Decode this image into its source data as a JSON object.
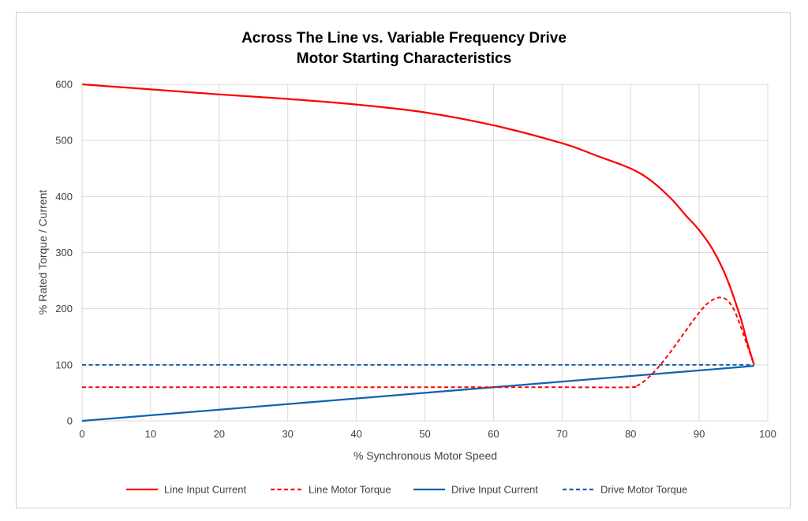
{
  "chart_data": {
    "type": "line",
    "title": [
      "Across The Line vs. Variable Frequency Drive",
      "Motor Starting Characteristics"
    ],
    "xlabel": "% Synchronous Motor Speed",
    "ylabel": "% Rated Torque / Current",
    "xlim": [
      0,
      100
    ],
    "ylim": [
      0,
      600
    ],
    "xticks": [
      0,
      10,
      20,
      30,
      40,
      50,
      60,
      70,
      80,
      90,
      100
    ],
    "yticks": [
      0,
      100,
      200,
      300,
      400,
      500,
      600
    ],
    "grid": true,
    "legend_position": "bottom",
    "series": [
      {
        "name": "Line Input Current",
        "color": "#ff0000",
        "dash": "solid",
        "x": [
          0,
          10,
          20,
          30,
          40,
          50,
          60,
          70,
          75,
          80,
          83,
          86,
          88,
          90,
          92,
          94,
          96,
          97,
          98
        ],
        "y": [
          600,
          591,
          582,
          574,
          564,
          550,
          527,
          495,
          473,
          450,
          428,
          395,
          367,
          340,
          305,
          255,
          185,
          140,
          100
        ]
      },
      {
        "name": "Line Motor Torque",
        "color": "#ff0000",
        "dash": "dashed",
        "x": [
          0,
          10,
          20,
          30,
          40,
          50,
          60,
          70,
          80,
          81,
          82,
          83,
          84,
          85,
          86,
          87,
          88,
          89,
          90,
          91,
          92,
          93,
          94,
          95,
          96,
          97,
          98
        ],
        "y": [
          60,
          60,
          60,
          60,
          60,
          60,
          60,
          60,
          60,
          63,
          71,
          82,
          95,
          110,
          126,
          143,
          160,
          177,
          193,
          207,
          216,
          220,
          216,
          200,
          170,
          135,
          100
        ]
      },
      {
        "name": "Drive Input Current",
        "color": "#0f62b0",
        "dash": "solid",
        "x": [
          0,
          98
        ],
        "y": [
          0,
          98
        ]
      },
      {
        "name": "Drive Motor Torque",
        "color": "#0f62b0",
        "dash": "dashed",
        "x": [
          0,
          98
        ],
        "y": [
          100,
          100
        ]
      }
    ]
  }
}
